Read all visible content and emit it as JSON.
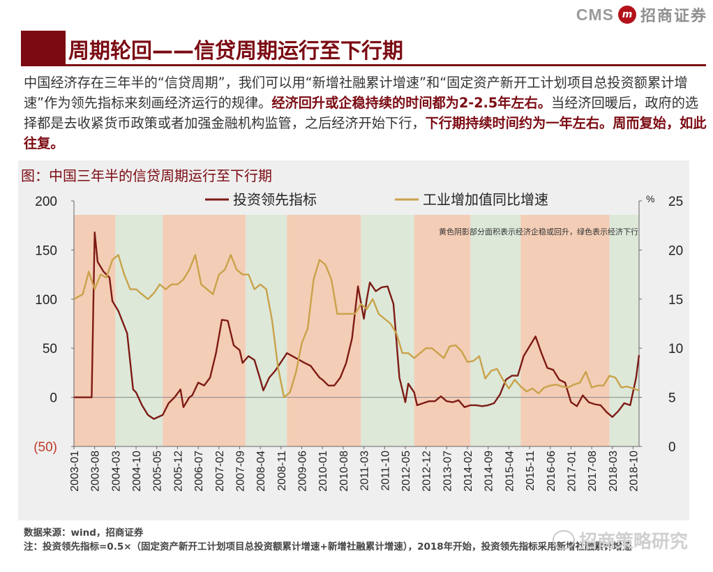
{
  "header": {
    "logo_latin": "CMS",
    "logo_mark": "m",
    "logo_cn": "招商证券",
    "title": "周期轮回——信贷周期运行至下行期"
  },
  "intro": {
    "p1": "中国经济存在三年半的“信贷周期”，我们可以用“新增社融累计增速”和“固定资产新开工计划项目总投资额累计增速”作为领先指标来刻画经济运行的规律。",
    "p2_hl": "经济回升或企稳持续的时间都为2-2.5年左右。",
    "p3": "当经济回暖后，政府的选择都是去收紧货币政策或者加强金融机构监管，之后经济开始下行，",
    "p4_hl": "下行期持续时间约为一年左右。周而复始，如此往复。"
  },
  "chart_title": "图：中国三年半的信贷周期运行至下行期",
  "footer": {
    "source": "数据来源：wind，招商证券",
    "note": "注：投资领先指标=0.5×（固定资产新开工计划项目总投资额累计增速+新增社融累计增速），2018年开始，投资领先指标采用新增社融累计增速",
    "watermark": "招商策略研究"
  },
  "chart_data": {
    "type": "line",
    "title": "中国三年半的信贷周期运行至下行期",
    "annotation": "黄色阴影部分面积表示经济企稳或回升，绿色表示经济下行",
    "y_left": {
      "ylim": [
        -50,
        200
      ],
      "ticks": [
        200,
        150,
        100,
        50,
        0,
        -50
      ],
      "tick_labels": [
        "200",
        "150",
        "100",
        "50",
        "0",
        "(50)"
      ]
    },
    "y_right": {
      "ylim": [
        0,
        25
      ],
      "ticks": [
        25,
        20,
        15,
        10,
        5,
        0
      ],
      "unit": "%"
    },
    "x_range": [
      "2003-01",
      "2018-12"
    ],
    "x_ticks": [
      "2003-01",
      "2003-08",
      "2004-03",
      "2004-10",
      "2005-05",
      "2005-12",
      "2006-07",
      "2007-02",
      "2007-09",
      "2008-04",
      "2008-11",
      "2009-06",
      "2010-01",
      "2010-08",
      "2011-03",
      "2011-10",
      "2012-05",
      "2012-12",
      "2013-07",
      "2014-02",
      "2014-09",
      "2015-04",
      "2015-11",
      "2016-06",
      "2017-01",
      "2017-08",
      "2018-03",
      "2018-10"
    ],
    "shaded_periods": [
      {
        "start": "2003-01",
        "end": "2004-03",
        "type": "recovery"
      },
      {
        "start": "2004-03",
        "end": "2005-07",
        "type": "downturn"
      },
      {
        "start": "2005-07",
        "end": "2007-11",
        "type": "recovery"
      },
      {
        "start": "2007-11",
        "end": "2009-01",
        "type": "downturn"
      },
      {
        "start": "2009-01",
        "end": "2011-02",
        "type": "recovery"
      },
      {
        "start": "2011-02",
        "end": "2012-08",
        "type": "downturn"
      },
      {
        "start": "2012-08",
        "end": "2014-03",
        "type": "recovery"
      },
      {
        "start": "2014-03",
        "end": "2015-08",
        "type": "downturn"
      },
      {
        "start": "2015-08",
        "end": "2018-02",
        "type": "recovery"
      },
      {
        "start": "2018-02",
        "end": "2018-12",
        "type": "downturn"
      }
    ],
    "colors": {
      "recovery": "#f4cdb6",
      "downturn": "#dde8d9",
      "series1": "#7d1a14",
      "series2": "#c9a24a"
    },
    "series": [
      {
        "name": "投资领先指标",
        "axis": "left",
        "points": [
          [
            "2003-01",
            0
          ],
          [
            "2003-07",
            0
          ],
          [
            "2003-08",
            168
          ],
          [
            "2003-09",
            138
          ],
          [
            "2003-11",
            128
          ],
          [
            "2004-01",
            122
          ],
          [
            "2004-02",
            98
          ],
          [
            "2004-04",
            88
          ],
          [
            "2004-07",
            65
          ],
          [
            "2004-09",
            8
          ],
          [
            "2004-10",
            5
          ],
          [
            "2004-12",
            -8
          ],
          [
            "2005-02",
            -18
          ],
          [
            "2005-04",
            -22
          ],
          [
            "2005-07",
            -18
          ],
          [
            "2005-09",
            -6
          ],
          [
            "2005-11",
            0
          ],
          [
            "2006-01",
            8
          ],
          [
            "2006-02",
            -10
          ],
          [
            "2006-04",
            0
          ],
          [
            "2006-05",
            2
          ],
          [
            "2006-07",
            15
          ],
          [
            "2006-09",
            12
          ],
          [
            "2006-11",
            20
          ],
          [
            "2007-01",
            45
          ],
          [
            "2007-03",
            79
          ],
          [
            "2007-05",
            78
          ],
          [
            "2007-07",
            53
          ],
          [
            "2007-09",
            48
          ],
          [
            "2007-10",
            35
          ],
          [
            "2007-12",
            42
          ],
          [
            "2008-02",
            38
          ],
          [
            "2008-04",
            18
          ],
          [
            "2008-05",
            7
          ],
          [
            "2008-07",
            20
          ],
          [
            "2008-09",
            27
          ],
          [
            "2008-11",
            36
          ],
          [
            "2009-01",
            45
          ],
          [
            "2009-04",
            40
          ],
          [
            "2009-07",
            35
          ],
          [
            "2009-09",
            32
          ],
          [
            "2009-10",
            28
          ],
          [
            "2009-12",
            20
          ],
          [
            "2010-01",
            18
          ],
          [
            "2010-03",
            12
          ],
          [
            "2010-05",
            12
          ],
          [
            "2010-07",
            20
          ],
          [
            "2010-09",
            35
          ],
          [
            "2010-11",
            60
          ],
          [
            "2011-01",
            113
          ],
          [
            "2011-03",
            80
          ],
          [
            "2011-04",
            100
          ],
          [
            "2011-05",
            117
          ],
          [
            "2011-07",
            108
          ],
          [
            "2011-09",
            112
          ],
          [
            "2011-11",
            113
          ],
          [
            "2012-01",
            95
          ],
          [
            "2012-03",
            20
          ],
          [
            "2012-05",
            -5
          ],
          [
            "2012-06",
            14
          ],
          [
            "2012-08",
            5
          ],
          [
            "2012-09",
            -8
          ],
          [
            "2012-11",
            -6
          ],
          [
            "2013-01",
            -4
          ],
          [
            "2013-03",
            -4
          ],
          [
            "2013-05",
            1
          ],
          [
            "2013-07",
            -4
          ],
          [
            "2013-09",
            -5
          ],
          [
            "2013-11",
            -3
          ],
          [
            "2014-01",
            -10
          ],
          [
            "2014-03",
            -8
          ],
          [
            "2014-05",
            -8
          ],
          [
            "2014-07",
            -9
          ],
          [
            "2014-09",
            -8
          ],
          [
            "2014-11",
            -6
          ],
          [
            "2015-01",
            3
          ],
          [
            "2015-03",
            18
          ],
          [
            "2015-05",
            22
          ],
          [
            "2015-07",
            22
          ],
          [
            "2015-09",
            42
          ],
          [
            "2015-11",
            52
          ],
          [
            "2016-01",
            62
          ],
          [
            "2016-03",
            45
          ],
          [
            "2016-05",
            30
          ],
          [
            "2016-07",
            28
          ],
          [
            "2016-09",
            18
          ],
          [
            "2016-11",
            15
          ],
          [
            "2017-01",
            -5
          ],
          [
            "2017-03",
            -9
          ],
          [
            "2017-05",
            2
          ],
          [
            "2017-07",
            -5
          ],
          [
            "2017-09",
            -7
          ],
          [
            "2017-11",
            -8
          ],
          [
            "2018-01",
            -15
          ],
          [
            "2018-03",
            -20
          ],
          [
            "2018-05",
            -14
          ],
          [
            "2018-07",
            -6
          ],
          [
            "2018-09",
            -8
          ],
          [
            "2018-11",
            20
          ],
          [
            "2018-12",
            43
          ]
        ]
      },
      {
        "name": "工业增加值同比增速",
        "axis": "right",
        "points": [
          [
            "2003-01",
            15.0
          ],
          [
            "2003-04",
            15.5
          ],
          [
            "2003-06",
            17.8
          ],
          [
            "2003-08",
            16.0
          ],
          [
            "2003-10",
            17.5
          ],
          [
            "2003-12",
            17.2
          ],
          [
            "2004-02",
            19.0
          ],
          [
            "2004-04",
            19.5
          ],
          [
            "2004-06",
            17.5
          ],
          [
            "2004-08",
            16.0
          ],
          [
            "2004-10",
            16.0
          ],
          [
            "2004-12",
            15.5
          ],
          [
            "2005-02",
            15.0
          ],
          [
            "2005-04",
            15.6
          ],
          [
            "2005-06",
            16.5
          ],
          [
            "2005-08",
            16.0
          ],
          [
            "2005-10",
            16.5
          ],
          [
            "2005-12",
            16.5
          ],
          [
            "2006-02",
            17.0
          ],
          [
            "2006-04",
            18.0
          ],
          [
            "2006-06",
            19.5
          ],
          [
            "2006-08",
            16.5
          ],
          [
            "2006-10",
            16.0
          ],
          [
            "2006-12",
            15.5
          ],
          [
            "2007-02",
            17.5
          ],
          [
            "2007-04",
            18.0
          ],
          [
            "2007-06",
            19.5
          ],
          [
            "2007-08",
            18.0
          ],
          [
            "2007-10",
            17.5
          ],
          [
            "2007-12",
            17.5
          ],
          [
            "2008-02",
            16.0
          ],
          [
            "2008-04",
            16.5
          ],
          [
            "2008-06",
            16.0
          ],
          [
            "2008-08",
            12.8
          ],
          [
            "2008-10",
            8.0
          ],
          [
            "2008-12",
            5.0
          ],
          [
            "2009-02",
            5.5
          ],
          [
            "2009-04",
            7.5
          ],
          [
            "2009-06",
            10.5
          ],
          [
            "2009-08",
            12.0
          ],
          [
            "2009-10",
            17.0
          ],
          [
            "2009-12",
            19.0
          ],
          [
            "2010-02",
            18.5
          ],
          [
            "2010-04",
            17.0
          ],
          [
            "2010-06",
            13.5
          ],
          [
            "2010-08",
            13.5
          ],
          [
            "2010-10",
            13.5
          ],
          [
            "2010-12",
            13.5
          ],
          [
            "2011-02",
            14.5
          ],
          [
            "2011-04",
            14.0
          ],
          [
            "2011-06",
            15.0
          ],
          [
            "2011-08",
            13.5
          ],
          [
            "2011-10",
            13.0
          ],
          [
            "2011-12",
            12.5
          ],
          [
            "2012-02",
            11.5
          ],
          [
            "2012-04",
            9.5
          ],
          [
            "2012-06",
            9.5
          ],
          [
            "2012-08",
            9.0
          ],
          [
            "2012-10",
            9.5
          ],
          [
            "2012-12",
            10.0
          ],
          [
            "2013-02",
            10.0
          ],
          [
            "2013-04",
            9.5
          ],
          [
            "2013-06",
            9.0
          ],
          [
            "2013-08",
            10.2
          ],
          [
            "2013-10",
            10.3
          ],
          [
            "2013-12",
            9.7
          ],
          [
            "2014-02",
            8.6
          ],
          [
            "2014-04",
            8.7
          ],
          [
            "2014-06",
            9.2
          ],
          [
            "2014-08",
            6.9
          ],
          [
            "2014-10",
            7.7
          ],
          [
            "2014-12",
            7.9
          ],
          [
            "2015-02",
            6.8
          ],
          [
            "2015-04",
            5.9
          ],
          [
            "2015-06",
            6.8
          ],
          [
            "2015-08",
            6.1
          ],
          [
            "2015-10",
            5.6
          ],
          [
            "2015-12",
            5.9
          ],
          [
            "2016-02",
            5.4
          ],
          [
            "2016-04",
            6.0
          ],
          [
            "2016-06",
            6.2
          ],
          [
            "2016-08",
            6.3
          ],
          [
            "2016-10",
            6.1
          ],
          [
            "2016-12",
            6.0
          ],
          [
            "2017-02",
            6.3
          ],
          [
            "2017-04",
            6.5
          ],
          [
            "2017-06",
            7.6
          ],
          [
            "2017-08",
            6.0
          ],
          [
            "2017-10",
            6.2
          ],
          [
            "2017-12",
            6.2
          ],
          [
            "2018-02",
            7.2
          ],
          [
            "2018-04",
            7.0
          ],
          [
            "2018-06",
            6.0
          ],
          [
            "2018-08",
            6.1
          ],
          [
            "2018-10",
            5.9
          ],
          [
            "2018-12",
            5.7
          ]
        ]
      }
    ]
  }
}
